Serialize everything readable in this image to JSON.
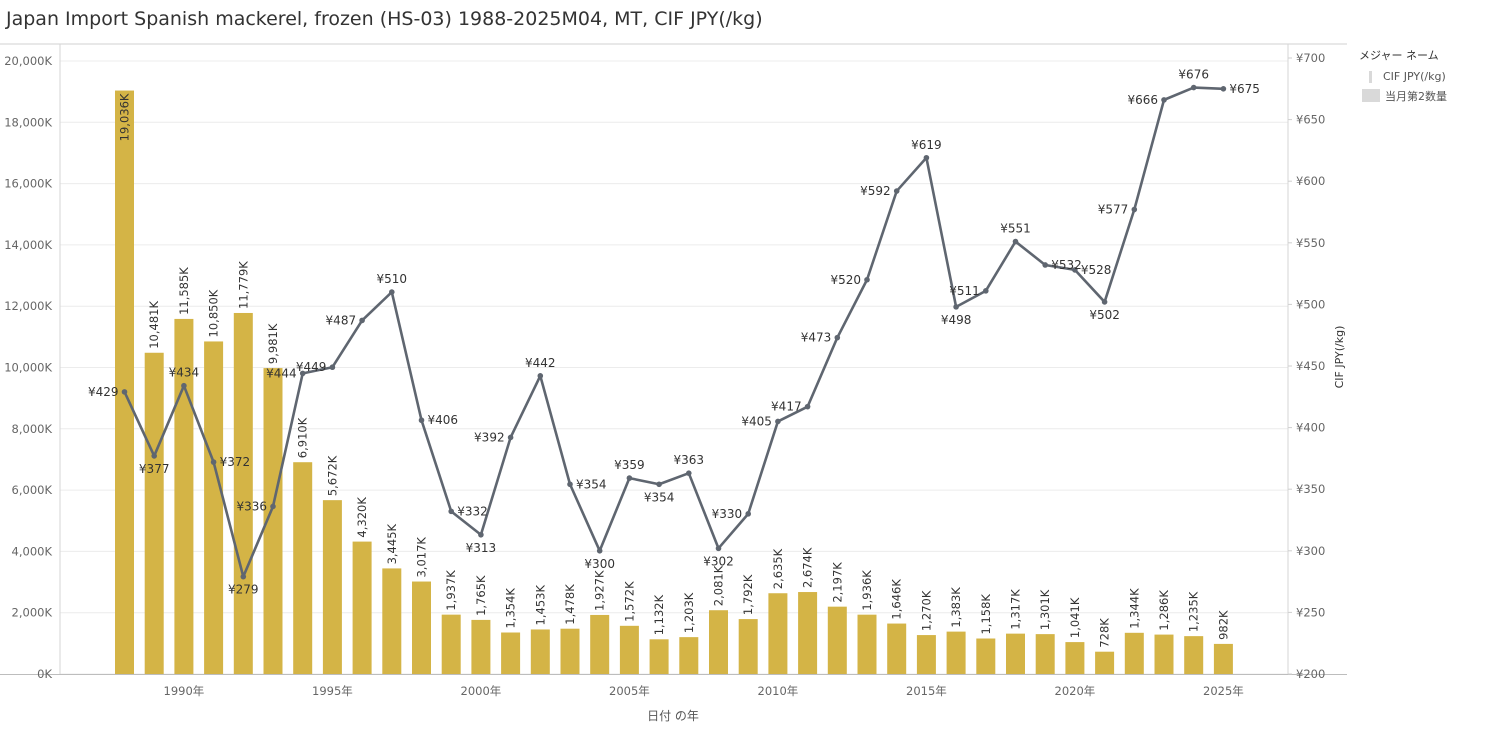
{
  "title": "Japan Import Spanish mackerel, frozen (HS-03) 1988-2025M04, MT, CIF JPY(/kg)",
  "legend": {
    "title": "メジャー ネーム",
    "items": [
      {
        "label": "CIF JPY(/kg)",
        "kind": "line",
        "color": "#d9d9d9"
      },
      {
        "label": "当月第2数量",
        "kind": "bar",
        "color": "#d9d9d9"
      }
    ]
  },
  "chart_data": {
    "type": "bar+line",
    "xlabel": "日付 の年",
    "y2label": "CIF JPY(/kg)",
    "grid": true,
    "legend_position": "top-right",
    "x": [
      1988,
      1989,
      1990,
      1991,
      1992,
      1993,
      1994,
      1995,
      1996,
      1997,
      1998,
      1999,
      2000,
      2001,
      2002,
      2003,
      2004,
      2005,
      2006,
      2007,
      2008,
      2009,
      2010,
      2011,
      2012,
      2013,
      2014,
      2015,
      2016,
      2017,
      2018,
      2019,
      2020,
      2021,
      2022,
      2023,
      2024,
      2025
    ],
    "x_ticks": [
      {
        "value": 1990,
        "label": "1990年"
      },
      {
        "value": 1995,
        "label": "1995年"
      },
      {
        "value": 2000,
        "label": "2000年"
      },
      {
        "value": 2005,
        "label": "2005年"
      },
      {
        "value": 2010,
        "label": "2010年"
      },
      {
        "value": 2015,
        "label": "2015年"
      },
      {
        "value": 2020,
        "label": "2020年"
      },
      {
        "value": 2025,
        "label": "2025年"
      }
    ],
    "y_left": {
      "range": [
        0,
        20000
      ],
      "ticks": [
        {
          "value": 0,
          "label": "0K"
        },
        {
          "value": 2000,
          "label": "2,000K"
        },
        {
          "value": 4000,
          "label": "4,000K"
        },
        {
          "value": 6000,
          "label": "6,000K"
        },
        {
          "value": 8000,
          "label": "8,000K"
        },
        {
          "value": 10000,
          "label": "10,000K"
        },
        {
          "value": 12000,
          "label": "12,000K"
        },
        {
          "value": 14000,
          "label": "14,000K"
        },
        {
          "value": 16000,
          "label": "16,000K"
        },
        {
          "value": 18000,
          "label": "18,000K"
        },
        {
          "value": 20000,
          "label": "20,000K"
        }
      ]
    },
    "y_right": {
      "range": [
        200,
        700
      ],
      "ticks": [
        {
          "value": 200,
          "label": "¥200"
        },
        {
          "value": 250,
          "label": "¥250"
        },
        {
          "value": 300,
          "label": "¥300"
        },
        {
          "value": 350,
          "label": "¥350"
        },
        {
          "value": 400,
          "label": "¥400"
        },
        {
          "value": 450,
          "label": "¥450"
        },
        {
          "value": 500,
          "label": "¥500"
        },
        {
          "value": 550,
          "label": "¥550"
        },
        {
          "value": 600,
          "label": "¥600"
        },
        {
          "value": 650,
          "label": "¥650"
        },
        {
          "value": 700,
          "label": "¥700"
        }
      ]
    },
    "series": [
      {
        "name": "当月第2数量",
        "type": "bar",
        "axis": "left",
        "color": "#d4b446",
        "values": [
          19036,
          10481,
          11585,
          10850,
          11779,
          9981,
          6910,
          5672,
          4320,
          3445,
          3017,
          1937,
          1765,
          1354,
          1453,
          1478,
          1927,
          1572,
          1132,
          1203,
          2081,
          1792,
          2635,
          2674,
          2197,
          1936,
          1646,
          1270,
          1383,
          1158,
          1317,
          1301,
          1041,
          728,
          1344,
          1286,
          1235,
          982
        ],
        "labels": [
          "19,036K",
          "10,481K",
          "11,585K",
          "10,850K",
          "11,779K",
          "9,981K",
          "6,910K",
          "5,672K",
          "4,320K",
          "3,445K",
          "3,017K",
          "1,937K",
          "1,765K",
          "1,354K",
          "1,453K",
          "1,478K",
          "1,927K",
          "1,572K",
          "1,132K",
          "1,203K",
          "2,081K",
          "1,792K",
          "2,635K",
          "2,674K",
          "2,197K",
          "1,936K",
          "1,646K",
          "1,270K",
          "1,383K",
          "1,158K",
          "1,317K",
          "1,301K",
          "1,041K",
          "728K",
          "1,344K",
          "1,286K",
          "1,235K",
          "982K"
        ]
      },
      {
        "name": "CIF JPY(/kg)",
        "type": "line",
        "axis": "right",
        "color": "#5f6670",
        "values": [
          429,
          377,
          434,
          372,
          279,
          336,
          444,
          449,
          487,
          510,
          406,
          332,
          313,
          392,
          442,
          354,
          300,
          359,
          354,
          363,
          302,
          330,
          405,
          417,
          473,
          520,
          592,
          619,
          498,
          511,
          551,
          532,
          528,
          502,
          577,
          666,
          676,
          675
        ],
        "labels": [
          "¥429",
          "¥377",
          "¥434",
          "¥372",
          "¥279",
          "¥336",
          "¥444",
          "¥449",
          "¥487",
          "¥510",
          "¥406",
          "¥332",
          "¥313",
          "¥392",
          "¥442",
          "¥354",
          "¥300",
          "¥359",
          "¥354",
          "¥363",
          "¥302",
          "¥330",
          "¥405",
          "¥417",
          "¥473",
          "¥520",
          "¥592",
          "¥619",
          "¥498",
          "¥511",
          "¥551",
          "¥532",
          "¥528",
          "¥502",
          "¥577",
          "¥666",
          "¥676",
          "¥675"
        ]
      }
    ]
  }
}
